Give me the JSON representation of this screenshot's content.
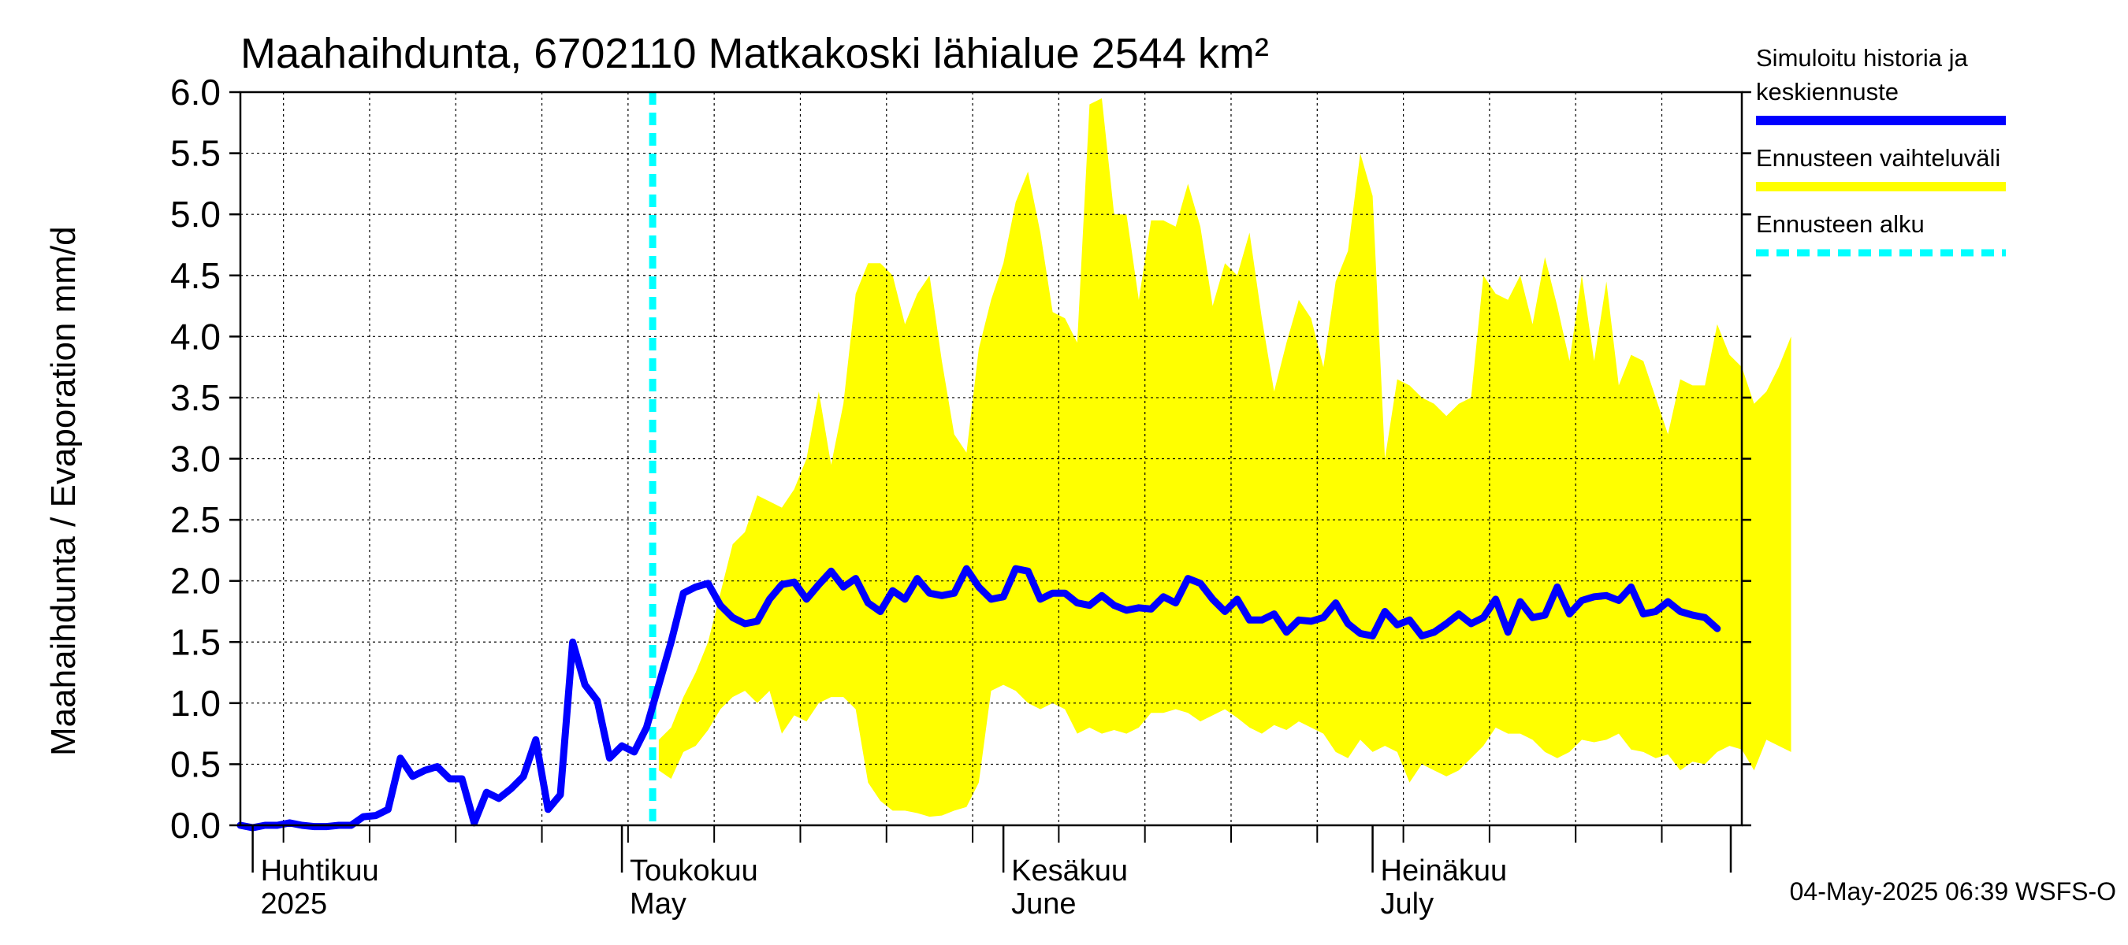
{
  "chart_data": {
    "type": "area",
    "title": "Maahaihdunta, 6702110 Matkakoski lähialue 2544 km²",
    "ylabel": "Maahaihdunta / Evaporation   mm/d",
    "ylim": [
      0,
      6.0
    ],
    "yticks": [
      "0.0",
      "0.5",
      "1.0",
      "1.5",
      "2.0",
      "2.5",
      "3.0",
      "3.5",
      "4.0",
      "4.5",
      "5.0",
      "5.5",
      "6.0"
    ],
    "xlim": [
      "2025-03-31",
      "2025-07-31"
    ],
    "month_labels": [
      {
        "date": "2025-04-01",
        "fi": "Huhtikuu",
        "en": "2025"
      },
      {
        "date": "2025-05-01",
        "fi": "Toukokuu",
        "en": "May"
      },
      {
        "date": "2025-06-01",
        "fi": "Kesäkuu",
        "en": "June"
      },
      {
        "date": "2025-07-01",
        "fi": "Heinäkuu",
        "en": "July"
      }
    ],
    "grid": true,
    "forecast_start": "2025-05-04",
    "series": [
      {
        "name": "Ennusteen vaihteluväli",
        "color": "#ffff00",
        "kind": "band",
        "start_date": "2025-05-04",
        "upper": [
          0.7,
          0.8,
          1.05,
          1.25,
          1.5,
          1.9,
          2.3,
          2.4,
          2.7,
          2.65,
          2.6,
          2.75,
          3.0,
          3.55,
          2.95,
          3.45,
          4.35,
          4.6,
          4.6,
          4.5,
          4.1,
          4.35,
          4.5,
          3.8,
          3.2,
          3.05,
          3.9,
          4.3,
          4.6,
          5.1,
          5.35,
          4.85,
          4.2,
          4.15,
          3.95,
          5.9,
          5.95,
          5.0,
          5.0,
          4.3,
          4.95,
          4.95,
          4.9,
          5.25,
          4.9,
          4.25,
          4.6,
          4.5,
          4.85,
          4.15,
          3.55,
          3.95,
          4.3,
          4.15,
          3.75,
          4.45,
          4.7,
          5.5,
          5.15,
          3.0,
          3.65,
          3.6,
          3.5,
          3.45,
          3.35,
          3.45,
          3.5,
          4.5,
          4.35,
          4.3,
          4.5,
          4.1,
          4.65,
          4.25,
          3.8,
          4.5,
          3.8,
          4.45,
          3.6,
          3.85,
          3.8,
          3.5,
          3.2,
          3.65,
          3.6,
          3.6,
          4.1,
          3.85,
          3.75,
          3.45,
          3.55,
          3.75,
          4.0
        ],
        "lower": [
          0.45,
          0.38,
          0.6,
          0.65,
          0.78,
          0.95,
          1.05,
          1.1,
          1.0,
          1.1,
          0.75,
          0.9,
          0.85,
          1.0,
          1.05,
          1.05,
          0.95,
          0.35,
          0.2,
          0.12,
          0.12,
          0.1,
          0.07,
          0.08,
          0.12,
          0.15,
          0.35,
          1.1,
          1.15,
          1.1,
          1.0,
          0.95,
          1.0,
          0.95,
          0.75,
          0.8,
          0.75,
          0.78,
          0.75,
          0.8,
          0.92,
          0.92,
          0.95,
          0.92,
          0.85,
          0.9,
          0.95,
          0.88,
          0.8,
          0.75,
          0.82,
          0.78,
          0.85,
          0.8,
          0.75,
          0.6,
          0.55,
          0.7,
          0.6,
          0.65,
          0.6,
          0.35,
          0.5,
          0.45,
          0.4,
          0.45,
          0.55,
          0.65,
          0.8,
          0.75,
          0.75,
          0.7,
          0.6,
          0.55,
          0.6,
          0.7,
          0.68,
          0.7,
          0.75,
          0.62,
          0.6,
          0.55,
          0.58,
          0.45,
          0.52,
          0.5,
          0.6,
          0.65,
          0.62,
          0.45,
          0.7,
          0.65,
          0.6
        ]
      },
      {
        "name": "Simuloitu historia ja keskiennuste",
        "color": "#0000ff",
        "kind": "line",
        "start_date": "2025-03-31",
        "values": [
          0.0,
          -0.02,
          0.0,
          0.0,
          0.02,
          0.0,
          -0.01,
          -0.01,
          0.0,
          0.0,
          0.07,
          0.08,
          0.13,
          0.55,
          0.4,
          0.45,
          0.48,
          0.38,
          0.38,
          0.02,
          0.27,
          0.22,
          0.3,
          0.4,
          0.7,
          0.13,
          0.25,
          1.5,
          1.15,
          1.02,
          0.55,
          0.65,
          0.6,
          0.8,
          1.15,
          1.5,
          1.9,
          1.95,
          1.98,
          1.8,
          1.7,
          1.65,
          1.67,
          1.85,
          1.97,
          1.99,
          1.85,
          1.97,
          2.08,
          1.95,
          2.02,
          1.82,
          1.75,
          1.92,
          1.85,
          2.02,
          1.9,
          1.88,
          1.9,
          2.1,
          1.95,
          1.85,
          1.87,
          2.1,
          2.08,
          1.85,
          1.9,
          1.9,
          1.82,
          1.8,
          1.88,
          1.8,
          1.76,
          1.78,
          1.77,
          1.87,
          1.82,
          2.02,
          1.98,
          1.85,
          1.75,
          1.85,
          1.68,
          1.68,
          1.73,
          1.58,
          1.68,
          1.67,
          1.7,
          1.82,
          1.65,
          1.57,
          1.55,
          1.75,
          1.64,
          1.68,
          1.55,
          1.58,
          1.65,
          1.73,
          1.65,
          1.7,
          1.85,
          1.58,
          1.83,
          1.7,
          1.72,
          1.95,
          1.73,
          1.84,
          1.87,
          1.88,
          1.84,
          1.95,
          1.73,
          1.75,
          1.83,
          1.75,
          1.72,
          1.7,
          1.61
        ]
      },
      {
        "name": "Ennusteen alku",
        "color": "#00ffff",
        "kind": "vline"
      }
    ],
    "legend": [
      {
        "lines": [
          "Simuloitu historia ja",
          "keskiennuste"
        ],
        "color": "#0000ff",
        "style": "solid"
      },
      {
        "lines": [
          "Ennusteen vaihteluväli"
        ],
        "color": "#ffff00",
        "style": "solid"
      },
      {
        "lines": [
          "Ennusteen alku"
        ],
        "color": "#00ffff",
        "style": "dashed"
      }
    ],
    "legend_position": "right"
  },
  "footer": "04-May-2025 06:39 WSFS-O"
}
